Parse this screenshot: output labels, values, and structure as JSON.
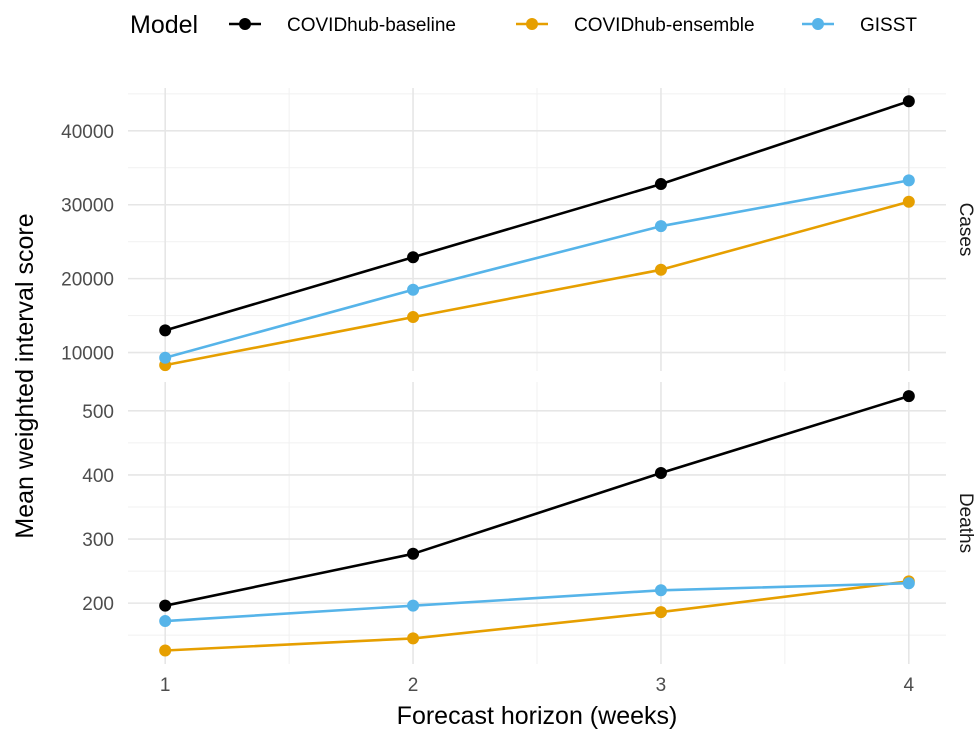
{
  "chart_data": {
    "type": "line",
    "legend": {
      "title": "Model",
      "placement": "top"
    },
    "xlabel": "Forecast horizon (weeks)",
    "ylabel": "Mean weighted interval score",
    "x": [
      1,
      2,
      3,
      4
    ],
    "x_ticks": [
      "1",
      "2",
      "3",
      "4"
    ],
    "grid": true,
    "series_styles": [
      {
        "name": "COVIDhub-baseline",
        "color": "#000000"
      },
      {
        "name": "COVIDhub-ensemble",
        "color": "#E69F00"
      },
      {
        "name": "GISST",
        "color": "#56B4E9"
      }
    ],
    "panels": [
      {
        "label": "Cases",
        "ylim": [
          7500,
          45800
        ],
        "y_ticks": [
          10000,
          20000,
          30000,
          40000
        ],
        "y_tick_labels": [
          "10000",
          "20000",
          "30000",
          "40000"
        ],
        "series": [
          {
            "name": "COVIDhub-baseline",
            "values": [
              13000,
              22900,
              32800,
              44000
            ]
          },
          {
            "name": "COVIDhub-ensemble",
            "values": [
              8300,
              14800,
              21200,
              30400
            ]
          },
          {
            "name": "GISST",
            "values": [
              9300,
              18500,
              27100,
              33300
            ]
          }
        ]
      },
      {
        "label": "Deaths",
        "ylim": [
          105,
          545
        ],
        "y_ticks": [
          200,
          300,
          400,
          500
        ],
        "y_tick_labels": [
          "200",
          "300",
          "400",
          "500"
        ],
        "series": [
          {
            "name": "COVIDhub-baseline",
            "values": [
              196,
              277,
              403,
              523
            ]
          },
          {
            "name": "COVIDhub-ensemble",
            "values": [
              126,
              145,
              186,
              234
            ]
          },
          {
            "name": "GISST",
            "values": [
              172,
              196,
              220,
              231
            ]
          }
        ]
      }
    ]
  }
}
